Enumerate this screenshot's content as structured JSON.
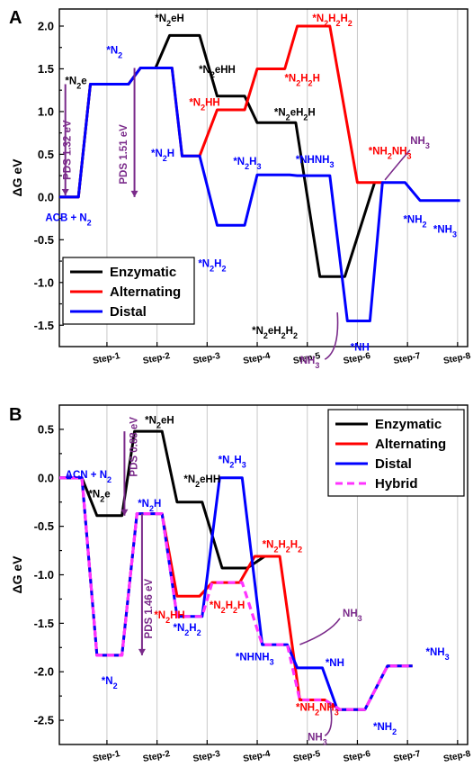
{
  "chart_data": [
    {
      "type": "line",
      "panel_label": "A",
      "ylabel": "ΔG eV",
      "ylim": [
        -1.75,
        2.2
      ],
      "yticks": [
        -1.5,
        -1.0,
        -0.5,
        0.0,
        0.5,
        1.0,
        1.5,
        2.0
      ],
      "ytick_labels": [
        "-1.5",
        "-1.0",
        "-0.5",
        "0.0",
        "0.5",
        "1.0",
        "1.5",
        "2.0"
      ],
      "categories": [
        "Step-1",
        "Step-2",
        "Step-3",
        "Step-4",
        "Step-5",
        "Step-6",
        "Step-7",
        "Step-8"
      ],
      "legend_position": "bottom-left",
      "grid": true,
      "series": [
        {
          "name": "Enzymatic",
          "color": "#000000",
          "points": [
            [
              0,
              0
            ],
            [
              0.38,
              0
            ],
            [
              0.62,
              1.32
            ],
            [
              1.38,
              1.32
            ],
            [
              1.62,
              1.51
            ],
            [
              1.92,
              1.51
            ],
            [
              2.2,
              1.89
            ],
            [
              2.8,
              1.89
            ],
            [
              3.15,
              1.18
            ],
            [
              3.7,
              1.18
            ],
            [
              3.95,
              0.87
            ],
            [
              4.5,
              0.87
            ],
            [
              4.72,
              0.87
            ],
            [
              5.2,
              -0.93
            ],
            [
              5.7,
              -0.93
            ],
            [
              6.3,
              0.18
            ]
          ]
        },
        {
          "name": "Alternating",
          "color": "#ff0000",
          "points": [
            [
              0,
              0
            ],
            [
              0.38,
              0
            ],
            [
              0.62,
              1.32
            ],
            [
              1.38,
              1.32
            ],
            [
              1.62,
              1.51
            ],
            [
              2.25,
              1.51
            ],
            [
              2.45,
              0.48
            ],
            [
              2.8,
              0.48
            ],
            [
              3.15,
              1.02
            ],
            [
              3.7,
              1.02
            ],
            [
              3.95,
              1.5
            ],
            [
              4.5,
              1.5
            ],
            [
              4.75,
              2.0
            ],
            [
              5.4,
              2.0
            ],
            [
              5.95,
              0.17
            ],
            [
              6.45,
              0.17
            ]
          ]
        },
        {
          "name": "Distal",
          "color": "#0000ff",
          "points": [
            [
              0,
              0
            ],
            [
              0.38,
              0
            ],
            [
              0.62,
              1.32
            ],
            [
              1.38,
              1.32
            ],
            [
              1.62,
              1.51
            ],
            [
              2.25,
              1.51
            ],
            [
              2.45,
              0.48
            ],
            [
              2.8,
              0.48
            ],
            [
              3.15,
              -0.33
            ],
            [
              3.7,
              -0.33
            ],
            [
              3.95,
              0.26
            ],
            [
              4.6,
              0.26
            ],
            [
              4.75,
              0.25
            ],
            [
              5.4,
              0.25
            ],
            [
              5.75,
              -1.45
            ],
            [
              6.2,
              -1.45
            ],
            [
              6.45,
              0.17
            ],
            [
              6.9,
              0.17
            ],
            [
              7.2,
              -0.04
            ],
            [
              8.0,
              -0.04
            ]
          ]
        }
      ],
      "annotations": [
        {
          "label": "ACB + N2",
          "color": "#0000ff"
        },
        {
          "label": "*N2e",
          "color": "#000000"
        },
        {
          "label": "*N2",
          "color": "#0000ff"
        },
        {
          "label": "*N2eH",
          "color": "#000000"
        },
        {
          "label": "*N2eHH",
          "color": "#000000"
        },
        {
          "label": "*N2eH2H",
          "color": "#000000"
        },
        {
          "label": "*N2eH2H2",
          "color": "#000000"
        },
        {
          "label": "*N2H",
          "color": "#0000ff"
        },
        {
          "label": "*N2HH",
          "color": "#ff0000"
        },
        {
          "label": "*N2H2H",
          "color": "#ff0000"
        },
        {
          "label": "*N2H2H2",
          "color": "#ff0000"
        },
        {
          "label": "*NH2NH3",
          "color": "#ff0000"
        },
        {
          "label": "*N2H3",
          "color": "#0000ff"
        },
        {
          "label": "*N2H2",
          "color": "#0000ff"
        },
        {
          "label": "*NHNH3",
          "color": "#0000ff"
        },
        {
          "label": "*NH",
          "color": "#0000ff"
        },
        {
          "label": "*NH2",
          "color": "#0000ff"
        },
        {
          "label": "*NH3",
          "color": "#0000ff"
        },
        {
          "label": "NH3",
          "color": "#7a2a8a"
        },
        {
          "label": "NH3",
          "color": "#7a2a8a"
        },
        {
          "label": "PDS 1.32 eV",
          "color": "#7a2a8a"
        },
        {
          "label": "PDS 1.51 eV",
          "color": "#7a2a8a"
        }
      ]
    },
    {
      "type": "line",
      "panel_label": "B",
      "ylabel": "ΔG eV",
      "ylim": [
        -2.75,
        0.75
      ],
      "yticks": [
        -2.5,
        -2.0,
        -1.5,
        -1.0,
        -0.5,
        0.0,
        0.5
      ],
      "ytick_labels": [
        "-2.5",
        "-2.0",
        "-1.5",
        "-1.0",
        "-0.5",
        "0.0",
        "0.5"
      ],
      "categories": [
        "Step-1",
        "Step-2",
        "Step-3",
        "Step-4",
        "Step-5",
        "Step-6",
        "Step-7",
        "Step-8"
      ],
      "legend_position": "top-right",
      "grid": true,
      "series": [
        {
          "name": "Enzymatic",
          "color": "#000000",
          "dashed": false,
          "points": [
            [
              0,
              0
            ],
            [
              0.45,
              0
            ],
            [
              0.75,
              -0.39
            ],
            [
              1.25,
              -0.39
            ],
            [
              1.5,
              0.48
            ],
            [
              2.05,
              0.48
            ],
            [
              2.35,
              -0.25
            ],
            [
              2.85,
              -0.25
            ],
            [
              3.25,
              -0.93
            ],
            [
              3.75,
              -0.93
            ],
            [
              4.1,
              -0.81
            ]
          ]
        },
        {
          "name": "Alternating",
          "color": "#ff0000",
          "dashed": false,
          "points": [
            [
              0,
              0
            ],
            [
              0.45,
              0
            ],
            [
              0.75,
              -1.83
            ],
            [
              1.25,
              -1.83
            ],
            [
              1.55,
              -0.37
            ],
            [
              2.05,
              -0.37
            ],
            [
              2.35,
              -1.22
            ],
            [
              2.8,
              -1.22
            ],
            [
              3.05,
              -1.08
            ],
            [
              3.6,
              -1.08
            ],
            [
              3.9,
              -0.81
            ],
            [
              4.4,
              -0.81
            ],
            [
              4.8,
              -2.29
            ],
            [
              5.3,
              -2.29
            ],
            [
              5.6,
              -2.39
            ],
            [
              6.1,
              -2.39
            ],
            [
              6.55,
              -1.94
            ],
            [
              7.05,
              -1.94
            ]
          ]
        },
        {
          "name": "Distal",
          "color": "#0000ff",
          "dashed": false,
          "points": [
            [
              0,
              0
            ],
            [
              0.45,
              0
            ],
            [
              0.75,
              -1.83
            ],
            [
              1.25,
              -1.83
            ],
            [
              1.55,
              -0.37
            ],
            [
              2.05,
              -0.37
            ],
            [
              2.35,
              -1.43
            ],
            [
              2.85,
              -1.43
            ],
            [
              3.2,
              0.0
            ],
            [
              3.65,
              0.0
            ],
            [
              4.05,
              -1.72
            ],
            [
              4.55,
              -1.72
            ],
            [
              4.75,
              -1.96
            ],
            [
              5.25,
              -1.96
            ],
            [
              5.55,
              -2.39
            ],
            [
              6.1,
              -2.39
            ],
            [
              6.55,
              -1.94
            ],
            [
              7.05,
              -1.94
            ]
          ]
        },
        {
          "name": "Hybrid",
          "color": "#ff33ff",
          "dashed": true,
          "points": [
            [
              0,
              0
            ],
            [
              0.45,
              0
            ],
            [
              0.75,
              -1.83
            ],
            [
              1.25,
              -1.83
            ],
            [
              1.55,
              -0.37
            ],
            [
              2.05,
              -0.37
            ],
            [
              2.35,
              -1.43
            ],
            [
              2.85,
              -1.43
            ],
            [
              3.05,
              -1.08
            ],
            [
              3.65,
              -1.08
            ],
            [
              4.05,
              -1.72
            ],
            [
              4.55,
              -1.72
            ],
            [
              4.8,
              -2.29
            ],
            [
              5.3,
              -2.29
            ],
            [
              5.6,
              -2.39
            ],
            [
              6.1,
              -2.39
            ],
            [
              6.55,
              -1.94
            ],
            [
              7.05,
              -1.94
            ]
          ]
        }
      ],
      "annotations": [
        {
          "label": "ACN + N2",
          "color": "#0000ff"
        },
        {
          "label": "*N2e",
          "color": "#000000"
        },
        {
          "label": "*N2eH",
          "color": "#000000"
        },
        {
          "label": "*N2eHH",
          "color": "#000000"
        },
        {
          "label": "*N2H",
          "color": "#0000ff"
        },
        {
          "label": "*N2",
          "color": "#0000ff"
        },
        {
          "label": "*N2HH",
          "color": "#ff0000"
        },
        {
          "label": "*N2H2",
          "color": "#0000ff"
        },
        {
          "label": "*N2H2H",
          "color": "#ff0000"
        },
        {
          "label": "*N2H3",
          "color": "#0000ff"
        },
        {
          "label": "*N2H2H2",
          "color": "#ff0000"
        },
        {
          "label": "*NHNH3",
          "color": "#0000ff"
        },
        {
          "label": "*NH",
          "color": "#0000ff"
        },
        {
          "label": "*NH2NH3",
          "color": "#ff0000"
        },
        {
          "label": "*NH2",
          "color": "#0000ff"
        },
        {
          "label": "*NH3",
          "color": "#0000ff"
        },
        {
          "label": "NH3",
          "color": "#7a2a8a"
        },
        {
          "label": "NH3",
          "color": "#7a2a8a"
        },
        {
          "label": "PDS 0.88 eV",
          "color": "#7a2a8a"
        },
        {
          "label": "PDS 1.46 eV",
          "color": "#7a2a8a"
        }
      ]
    }
  ]
}
